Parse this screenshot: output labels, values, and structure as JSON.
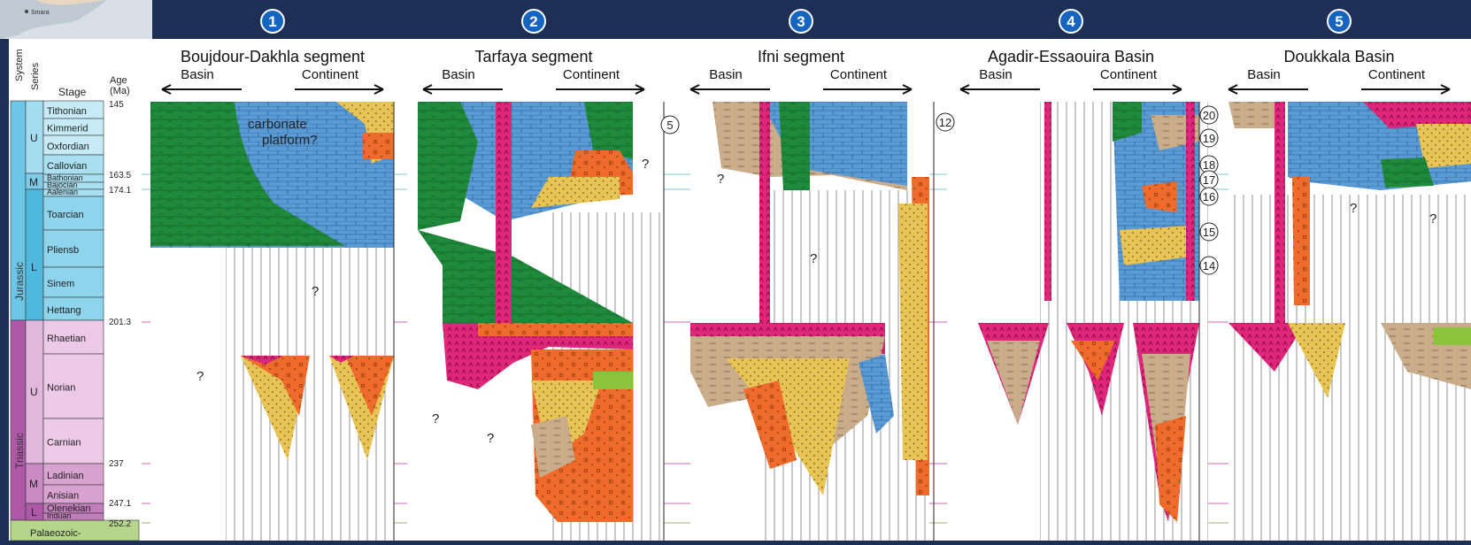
{
  "map_inset": {
    "label": "Smara"
  },
  "columns": [
    {
      "number": "1",
      "title": "Boujdour-Dakhla segment",
      "basin": "Basin",
      "continent": "Continent"
    },
    {
      "number": "2",
      "title": "Tarfaya segment",
      "basin": "Basin",
      "continent": "Continent"
    },
    {
      "number": "3",
      "title": "Ifni segment",
      "basin": "Basin",
      "continent": "Continent"
    },
    {
      "number": "4",
      "title": "Agadir-Essaouira Basin",
      "basin": "Basin",
      "continent": "Continent"
    },
    {
      "number": "5",
      "title": "Doukkala Basin",
      "basin": "Basin",
      "continent": "Continent"
    }
  ],
  "chronostrat_header": {
    "system": "System",
    "series": "Series",
    "stage": "Stage",
    "age": "Age\n(Ma)"
  },
  "systems": [
    "Jurassic",
    "Triassic",
    "Palaeozoic-"
  ],
  "series": [
    "U",
    "M",
    "L",
    "U",
    "M",
    "L"
  ],
  "stages": [
    "Tithonian",
    "Kimmerid",
    "Oxfordian",
    "Callovian",
    "Bathonian",
    "Bajocian",
    "Aalenian",
    "Toarcian",
    "Pliensb",
    "Sinem",
    "Hettang",
    "Rhaetian",
    "Norian",
    "Carnian",
    "Ladinian",
    "Anisian",
    "Olenekian",
    "Induan"
  ],
  "ages": [
    "145",
    "163.5",
    "174.1",
    "201.3",
    "237",
    "247.1",
    "252.2"
  ],
  "annotations": {
    "carbonate_platform": "carbonate platform?",
    "question": "?",
    "circled": [
      "5",
      "12",
      "20",
      "19",
      "18",
      "17",
      "16",
      "15",
      "14"
    ]
  },
  "colors": {
    "background": "#1d2f55",
    "panel": "#ffffff",
    "carbonate_blue": "#5b9bd5",
    "shale_green": "#1f8a3c",
    "evaporite_magenta": "#e0267a",
    "sandstone_yellow": "#e8c456",
    "conglomerate_orange": "#ee6b2b",
    "siliciclastic_tan": "#c9ad8a",
    "number_badge": "#1565c0",
    "jurassic": "#6cc6e6",
    "triassic": "#b058a8"
  }
}
